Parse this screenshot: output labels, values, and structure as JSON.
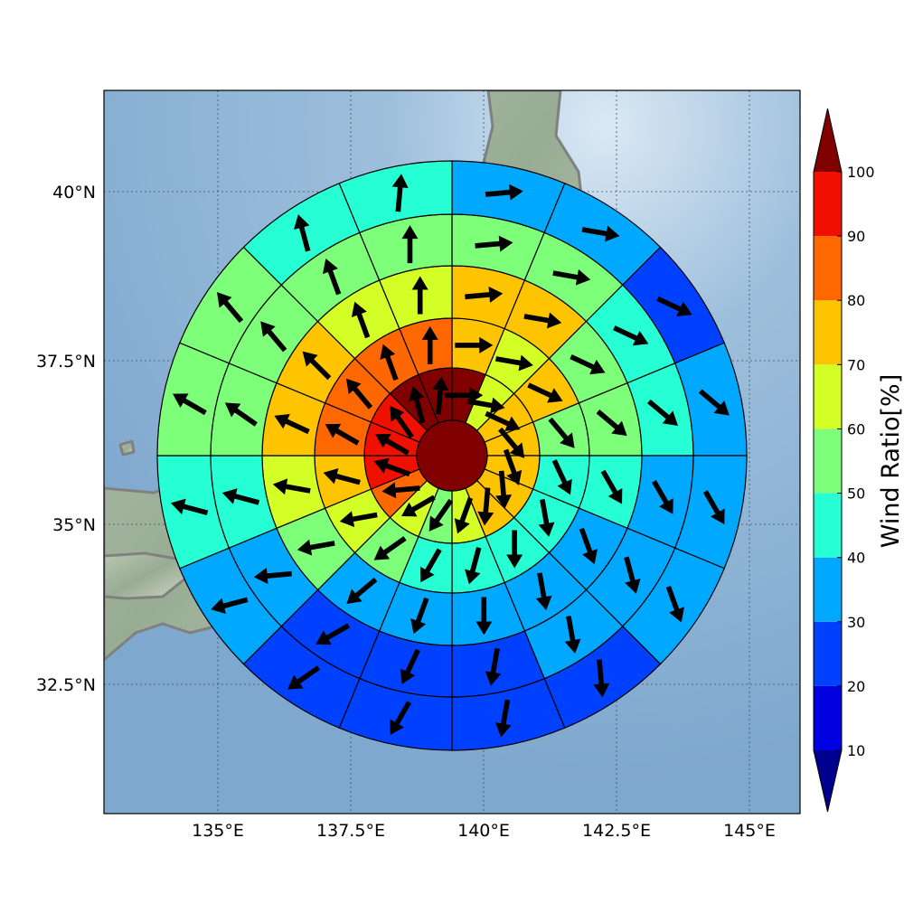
{
  "map": {
    "lon_ticks": [
      "135°E",
      "137.5°E",
      "140°E",
      "142.5°E",
      "145°E"
    ],
    "lat_ticks": [
      "40°N",
      "37.5°N",
      "35°N",
      "32.5°N"
    ],
    "lon_values": [
      135,
      137.5,
      140,
      142.5,
      145
    ],
    "lat_values": [
      40,
      37.5,
      35,
      32.5
    ],
    "ocean_color": "#8eb3d3",
    "coastline_color": "#808080",
    "gridline_style": "dotted"
  },
  "wind_rose": {
    "sector_count": 16,
    "ring_count": 5,
    "center_value": 100,
    "center_arrow": null,
    "rings": [
      {
        "values": [
          100,
          65,
          75,
          75,
          75,
          75,
          75,
          65,
          55,
          65,
          85,
          95,
          95,
          95,
          100,
          100
        ],
        "arrows": [
          90,
          100,
          115,
          140,
          160,
          175,
          185,
          200,
          215,
          240,
          265,
          290,
          300,
          325,
          345,
          5
        ]
      },
      {
        "values": [
          75,
          65,
          75,
          55,
          45,
          45,
          45,
          45,
          45,
          55,
          65,
          75,
          85,
          85,
          85,
          85
        ],
        "arrows": [
          90,
          100,
          115,
          140,
          155,
          170,
          180,
          195,
          210,
          235,
          260,
          285,
          300,
          320,
          340,
          0
        ]
      },
      {
        "values": [
          75,
          75,
          55,
          55,
          45,
          35,
          35,
          35,
          35,
          35,
          55,
          65,
          75,
          75,
          65,
          65
        ],
        "arrows": [
          85,
          100,
          115,
          130,
          150,
          160,
          170,
          180,
          200,
          230,
          260,
          280,
          295,
          315,
          340,
          0
        ]
      },
      {
        "values": [
          55,
          55,
          45,
          45,
          35,
          35,
          35,
          25,
          25,
          25,
          35,
          45,
          55,
          55,
          55,
          55
        ],
        "arrows": [
          85,
          100,
          115,
          130,
          150,
          165,
          170,
          190,
          205,
          240,
          265,
          285,
          305,
          320,
          340,
          0
        ]
      },
      {
        "values": [
          35,
          35,
          25,
          35,
          35,
          35,
          25,
          25,
          25,
          25,
          35,
          45,
          55,
          55,
          45,
          45
        ],
        "arrows": [
          85,
          100,
          115,
          130,
          150,
          160,
          175,
          190,
          210,
          235,
          255,
          285,
          300,
          320,
          345,
          5
        ]
      }
    ]
  },
  "colorbar": {
    "label": "Wind Ratio[%]",
    "ticks": [
      "10",
      "20",
      "30",
      "40",
      "50",
      "60",
      "70",
      "80",
      "90",
      "100"
    ],
    "bounds": [
      10,
      20,
      30,
      40,
      50,
      60,
      70,
      80,
      90,
      100
    ],
    "colors": [
      "#0000e0",
      "#0040ff",
      "#00a8ff",
      "#26ffd4",
      "#7dff7a",
      "#d4ff26",
      "#ffc400",
      "#ff6800",
      "#f01000"
    ],
    "under_color": "#00008f",
    "over_color": "#800000"
  }
}
